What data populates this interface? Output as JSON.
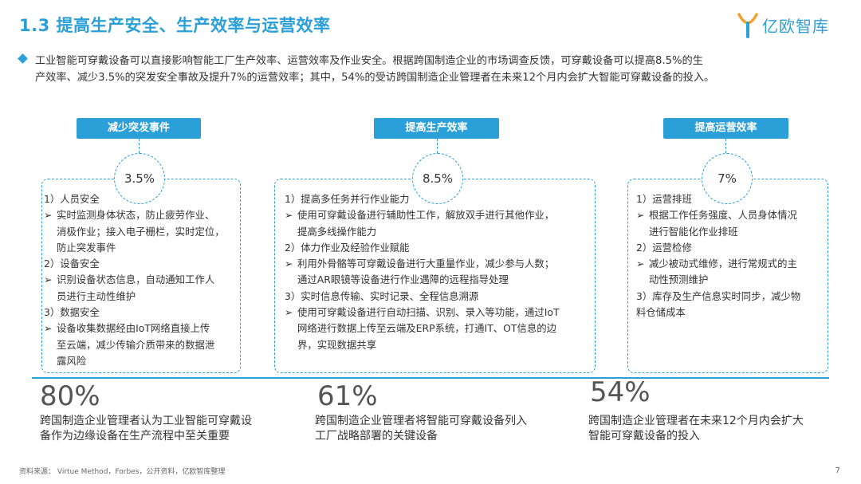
{
  "header": {
    "title": "1.3 提高生产安全、生产效率与运营效率",
    "logo_text": "亿欧智库",
    "logo_icon": "yiou-logo-icon"
  },
  "intro": {
    "line1": "工业智能可穿戴设备可以直接影响智能工厂生产效率、运营效率及作业安全。根据跨国制造企业的市场调查反馈，可穿戴设备可以提高8.5%的生",
    "line2": "产效率、减少3.5%的突发安全事故及提升7%的运营效率；其中，54%的受访跨国制造企业管理者在未来12个月内会扩大智能可穿戴设备的投入。"
  },
  "columns": [
    {
      "tag": "减少突发事件",
      "value": "3.5%",
      "lines": [
        {
          "type": "h",
          "text": "1）人员安全"
        },
        {
          "type": "b",
          "text": "实时监测身体状态，防止疲劳作业、"
        },
        {
          "type": "c",
          "text": "消极作业；接入电子栅栏，实时定位，"
        },
        {
          "type": "c",
          "text": "防止突发事件"
        },
        {
          "type": "h",
          "text": "2）设备安全"
        },
        {
          "type": "b",
          "text": "识别设备状态信息，自动通知工作人"
        },
        {
          "type": "c",
          "text": "员进行主动性维护"
        },
        {
          "type": "h",
          "text": "3）数据安全"
        },
        {
          "type": "b",
          "text": "设备收集数据经由IoT网络直接上传"
        },
        {
          "type": "c",
          "text": "至云端，减少传输介质带来的数据泄"
        },
        {
          "type": "c",
          "text": "露风险"
        }
      ]
    },
    {
      "tag": "提高生产效率",
      "value": "8.5%",
      "lines": [
        {
          "type": "h",
          "text": "1）提高多任务并行作业能力"
        },
        {
          "type": "b",
          "text": "使用可穿戴设备进行辅助性工作，解放双手进行其他作业，"
        },
        {
          "type": "c",
          "text": "提高多线操作能力"
        },
        {
          "type": "h",
          "text": "2）体力作业及经验作业赋能"
        },
        {
          "type": "b",
          "text": "利用外骨骼等可穿戴设备进行大重量作业，减少参与人数；"
        },
        {
          "type": "c",
          "text": "通过AR眼镜等设备进行作业遇障的远程指导处理"
        },
        {
          "type": "h",
          "text": "3）实时信息传输、实时记录、全程信息溯源"
        },
        {
          "type": "b",
          "text": "使用可穿戴设备进行自动扫描、识别、录入等功能，通过IoT"
        },
        {
          "type": "c",
          "text": "网络进行数据上传至云端及ERP系统，打通IT、OT信息的边"
        },
        {
          "type": "c",
          "text": "界，实现数据共享"
        }
      ]
    },
    {
      "tag": "提高运营效率",
      "value": "7%",
      "lines": [
        {
          "type": "h",
          "text": "1）运营排班"
        },
        {
          "type": "b",
          "text": "根据工作任务强度、人员身体情况"
        },
        {
          "type": "c",
          "text": "进行智能化作业排班"
        },
        {
          "type": "h",
          "text": "2）运营检修"
        },
        {
          "type": "b",
          "text": "减少被动式维修，进行常规式的主"
        },
        {
          "type": "c",
          "text": "动性预测维护"
        },
        {
          "type": "h",
          "text": "3）库存及生产信息实时同步，减少物"
        },
        {
          "type": "h",
          "text": "料仓储成本"
        }
      ]
    }
  ],
  "stats": [
    {
      "value": "80%",
      "line1": "跨国制造企业管理者认为工业智能可穿戴设",
      "line2": "备作为边缘设备在生产流程中至关重要"
    },
    {
      "value": "61%",
      "line1": "跨国制造企业管理者将智能可穿戴设备列入",
      "line2": "工厂战略部署的关键设备"
    },
    {
      "value": "54%",
      "line1": "跨国制造企业管理者在未来12个月内会扩大",
      "line2": "智能可穿戴设备的投入"
    }
  ],
  "footer": {
    "source": "资料来源： Virtue Method，Forbes，公开资料，亿欧智库整理",
    "page": "7"
  },
  "colors": {
    "accent": "#2a9fd8"
  }
}
